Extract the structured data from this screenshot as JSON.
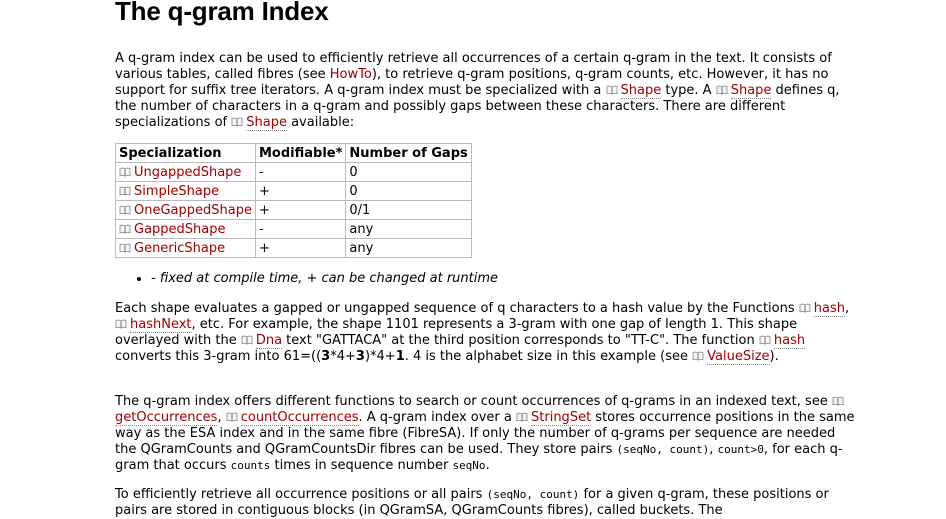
{
  "title": "The q-gram Index",
  "intro": {
    "t1": "A q-gram index can be used to efficiently retrieve all occurrences of a certain q-gram in the text. It consists of various tables, called fibres (see ",
    "howto": "HowTo",
    "t2": "), to retrieve q-gram positions, q-gram counts, etc. However, it has no support for suffix tree iterators. A q-gram index must be specialized with a ",
    "shape1": "Shape",
    "t3": " type. A ",
    "shape2": "Shape",
    "t4": " defines q, the number of characters in a q-gram and possibly gaps between these characters. There are different specializations of ",
    "shape3": "Shape",
    "t5": " available:"
  },
  "table": {
    "headers": [
      "Specialization",
      "Modifiable*",
      "Number of Gaps"
    ],
    "rows": [
      {
        "name": "UngappedShape",
        "modifiable": "-",
        "gaps": "0"
      },
      {
        "name": "SimpleShape",
        "modifiable": "+",
        "gaps": "0"
      },
      {
        "name": "OneGappedShape",
        "modifiable": "+",
        "gaps": "0/1"
      },
      {
        "name": "GappedShape",
        "modifiable": "-",
        "gaps": "any"
      },
      {
        "name": "GenericShape",
        "modifiable": "+",
        "gaps": "any"
      }
    ]
  },
  "note": "- fixed at compile time, + can be changed at runtime",
  "para2": {
    "t1": "Each shape evaluates a gapped or ungapped sequence of q characters to a hash value by the Functions ",
    "hash": "hash",
    "t2": ", ",
    "hashNext": "hashNext",
    "t3": ", etc. For example, the shape 1101 represents a 3-gram with one gap of length 1. This shape overlayed with the ",
    "dna": "Dna",
    "t4": " text \"GATTACA\" at the third position corresponds to \"TT-C\". The function ",
    "hash2": "hash",
    "t5": " converts this 3-gram into 61=((",
    "b1": "3",
    "t6": "*4+",
    "b2": "3",
    "t7": ")*4+",
    "b3": "1",
    "t8": ". 4 is the alphabet size in this example (see ",
    "valuesize": "ValueSize",
    "t9": ")."
  },
  "para3": {
    "t1": "The q-gram index offers different functions to search or count occurrences of q-grams in an indexed text, see ",
    "getOcc": "getOccurrences",
    "t2": ", ",
    "countOcc": "countOccurrences",
    "t3": ". A q-gram index over a ",
    "stringset": "StringSet",
    "t4": " stores occurrence positions in the same way as the ESA index and in the same fibre (FibreSA). If only the number of q-grams per sequence are needed the QGramCounts and QGramCountsDir fibres can be used. They store pairs ",
    "c1": "(seqNo, count)",
    "t5": ", ",
    "c2": "count>0",
    "t6": ", for each q-gram that occurs ",
    "c3": "counts",
    "t7": " times in sequence number ",
    "c4": "seqNo",
    "t8": "."
  },
  "para4": {
    "t1": "To efficiently retrieve all occurrence positions or all pairs ",
    "c1": "(seqNo, count)",
    "t2": " for a given q-gram, these positions or pairs are stored in contiguous blocks (in QGramSA, QGramCounts fibres), called buckets. The"
  },
  "icon": "book-icon",
  "colors": {
    "link": "#a00000",
    "border": "#bbbbbb"
  }
}
